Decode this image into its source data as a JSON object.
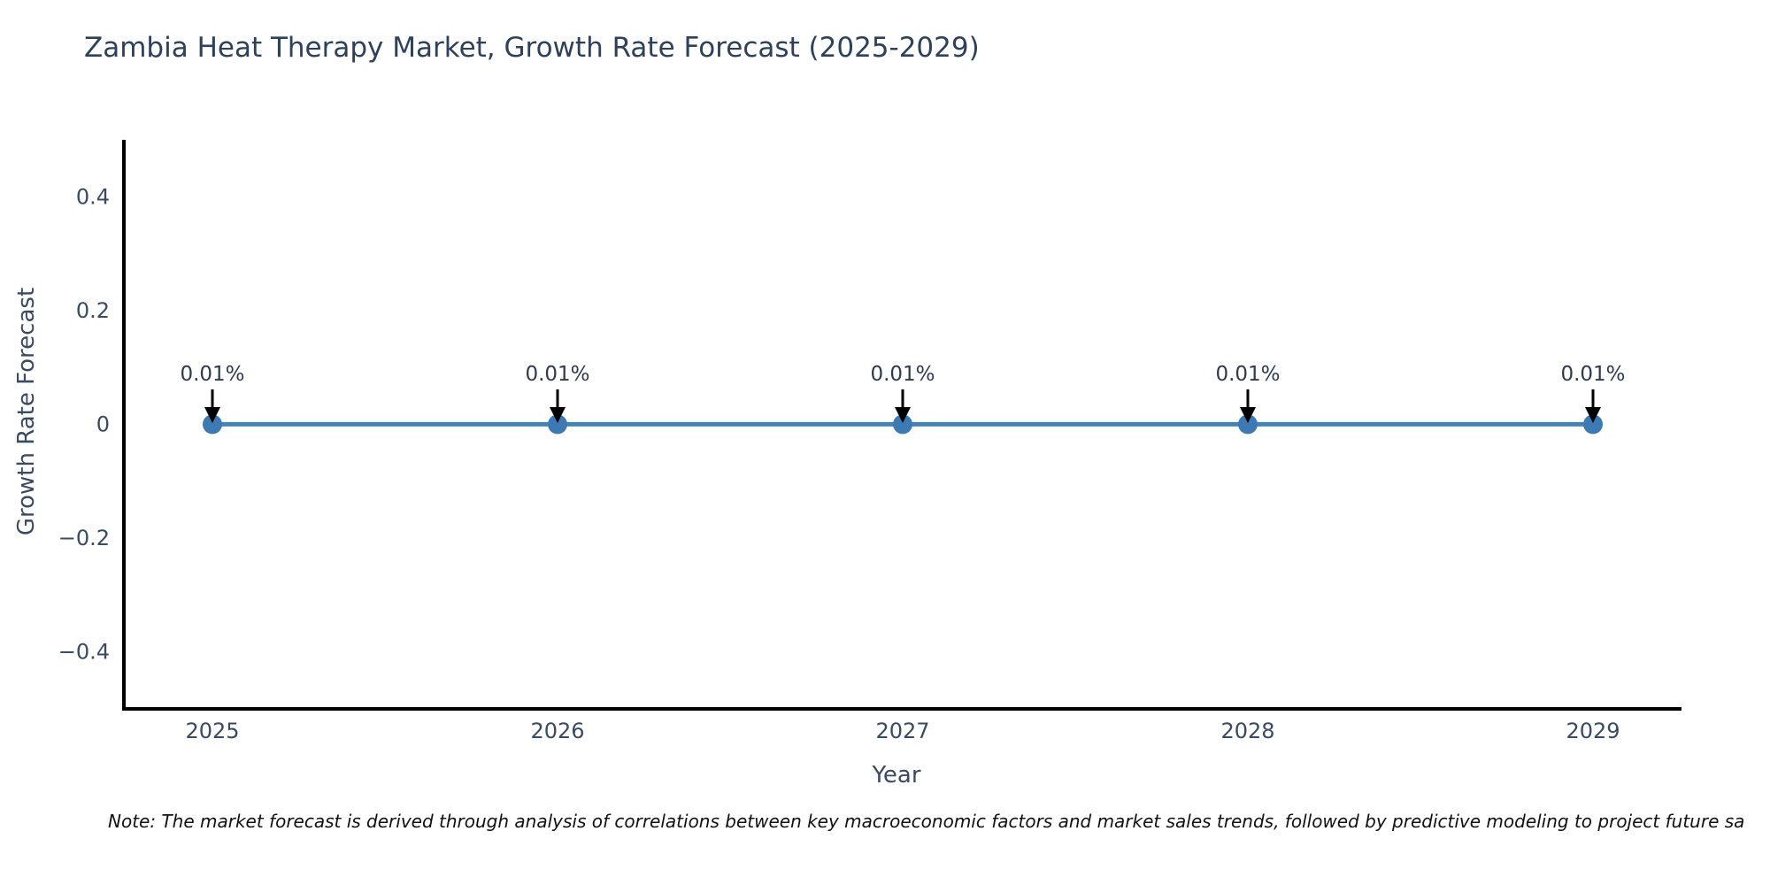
{
  "title": "Zambia Heat Therapy Market, Growth Rate Forecast (2025-2029)",
  "note": "Note: The market forecast is derived through analysis of correlations between key macroeconomic factors and market sales trends, followed by predictive modeling to project future sa",
  "colors": {
    "line": "#4682b4",
    "marker": "#3d79b2",
    "axis": "#000000",
    "arrow": "#000000",
    "text": "#3a4a60",
    "title_text": "#2e4158"
  },
  "chart_data": {
    "type": "line",
    "title": "Zambia Heat Therapy Market, Growth Rate Forecast (2025-2029)",
    "x": [
      2025,
      2026,
      2027,
      2028,
      2029
    ],
    "series": [
      {
        "name": "Growth Rate Forecast",
        "values_percent": [
          0.01,
          0.01,
          0.01,
          0.01,
          0.01
        ],
        "point_labels": [
          "0.01%",
          "0.01%",
          "0.01%",
          "0.01%",
          "0.01%"
        ]
      }
    ],
    "xlabel": "Year",
    "ylabel": "Growth Rate Forecast",
    "ylim": [
      -0.5,
      0.5
    ],
    "yticks": [
      0.4,
      0.2,
      0,
      -0.2,
      -0.4
    ],
    "ytick_labels": [
      "0.4",
      "0.2",
      "0",
      "−0.2",
      "−0.4"
    ],
    "grid": false,
    "legend_position": "none",
    "annotation_style": "value labels with downward arrows above each point"
  }
}
